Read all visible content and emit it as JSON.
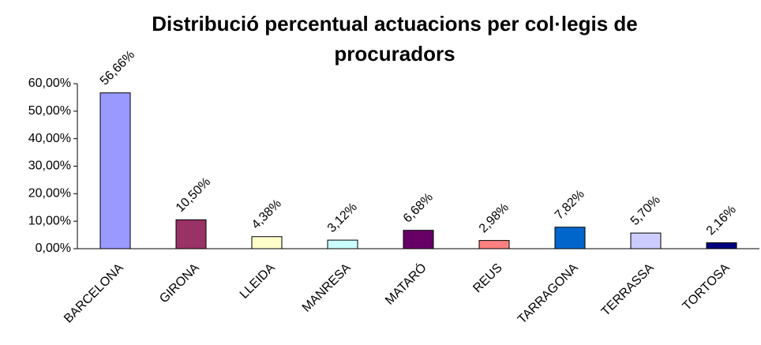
{
  "chart_data": {
    "type": "bar",
    "title": [
      "Distribució percentual actuacions  per col·legis de",
      "procuradors"
    ],
    "categories": [
      "BARCELONA",
      "GIRONA",
      "LLEIDA",
      "MANRESA",
      "MATARÓ",
      "REUS",
      "TARRAGONA",
      "TERRASSA",
      "TORTOSA"
    ],
    "values": [
      56.66,
      10.5,
      4.38,
      3.12,
      6.68,
      2.98,
      7.82,
      5.7,
      2.16
    ],
    "value_labels": [
      "56,66%",
      "10,50%",
      "4,38%",
      "3,12%",
      "6,68%",
      "2,98%",
      "7,82%",
      "5,70%",
      "2,16%"
    ],
    "colors": [
      "#9999ff",
      "#993366",
      "#ffffcc",
      "#ccffff",
      "#660066",
      "#ff8080",
      "#0066cc",
      "#ccccff",
      "#000080"
    ],
    "ylim": [
      0,
      60
    ],
    "yticks": [
      {
        "value": 0,
        "label": "0,00%"
      },
      {
        "value": 10,
        "label": "10,00%"
      },
      {
        "value": 20,
        "label": "20,00%"
      },
      {
        "value": 30,
        "label": "30,00%"
      },
      {
        "value": 40,
        "label": "40,00%"
      },
      {
        "value": 50,
        "label": "50,00%"
      },
      {
        "value": 60,
        "label": "60,00%"
      }
    ],
    "grid": false
  }
}
